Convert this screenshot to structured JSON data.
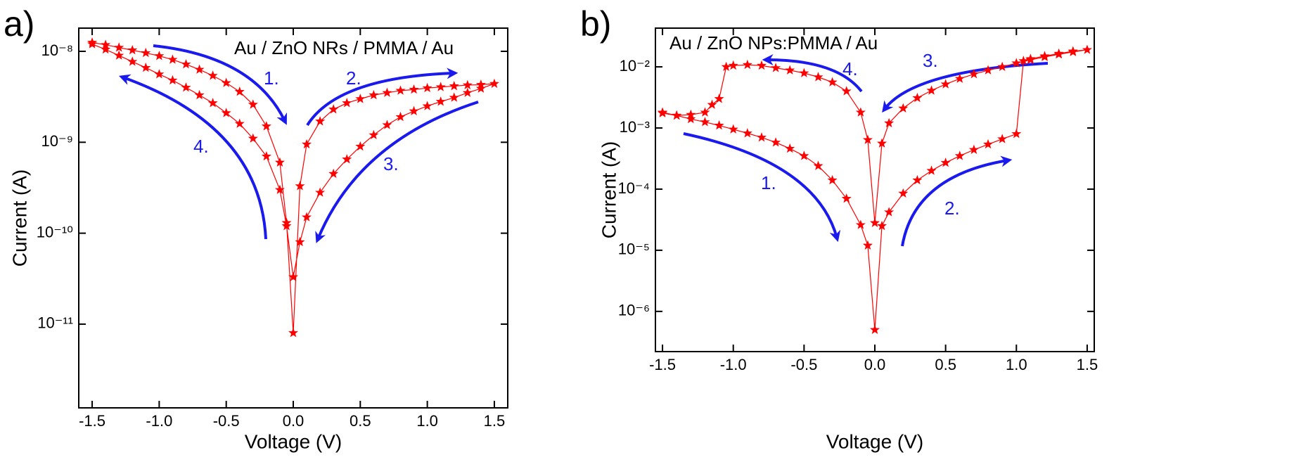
{
  "chart_data": [
    {
      "type": "line",
      "panel": "a)",
      "label": "Au / ZnO NRs / PMMA / Au",
      "annotations": [
        "1.",
        "2.",
        "3.",
        "4."
      ],
      "xlabel": "Voltage (V)",
      "ylabel": "Current (A)",
      "yscale": "log",
      "xlim": [
        -1.6,
        1.6
      ],
      "ylim": [
        1.2e-12,
        1.8e-08
      ],
      "xticks": [
        -1.5,
        {
          "value": -1,
          "label": "-1.0"
        },
        -0.5,
        {
          "value": 0,
          "label": "0.0"
        },
        0.5,
        {
          "value": 1,
          "label": "1.0"
        },
        1.5
      ],
      "yticks": [
        {
          "value": 1e-11,
          "label": "10⁻¹¹"
        },
        {
          "value": 1e-10,
          "label": "10⁻¹⁰"
        },
        {
          "value": 1e-09,
          "label": "10⁻⁹"
        },
        {
          "value": 1e-08,
          "label": "10⁻⁸"
        }
      ],
      "series": [
        {
          "color": "#ff0000",
          "x": [
            -1.5,
            -1.4,
            -1.3,
            -1.2,
            -1.1,
            -1.0,
            -0.9,
            -0.8,
            -0.7,
            -0.6,
            -0.5,
            -0.4,
            -0.3,
            -0.2,
            -0.1,
            -0.05,
            0,
            0.05,
            0.1,
            0.2,
            0.3,
            0.4,
            0.5,
            0.6,
            0.7,
            0.8,
            0.9,
            1.0,
            1.1,
            1.2,
            1.3,
            1.4,
            1.5,
            1.4,
            1.3,
            1.2,
            1.1,
            1.0,
            0.9,
            0.8,
            0.7,
            0.6,
            0.5,
            0.4,
            0.3,
            0.2,
            0.1,
            0.05,
            0,
            -0.05,
            -0.1,
            -0.2,
            -0.3,
            -0.4,
            -0.5,
            -0.6,
            -0.7,
            -0.8,
            -0.9,
            -1.0,
            -1.1,
            -1.2,
            -1.3,
            -1.4,
            -1.5
          ],
          "values": [
            1.25e-08,
            1.18e-08,
            1.1e-08,
            1.03e-08,
            9.6e-09,
            8.9e-09,
            8.1e-09,
            7.2e-09,
            6.3e-09,
            5.4e-09,
            4.5e-09,
            3.6e-09,
            2.6e-09,
            1.5e-09,
            6e-10,
            1.3e-10,
            8e-12,
            3.3e-10,
            9.5e-10,
            1.7e-09,
            2.3e-09,
            2.7e-09,
            3e-09,
            3.3e-09,
            3.5e-09,
            3.7e-09,
            3.8e-09,
            3.95e-09,
            4.05e-09,
            4.15e-09,
            4.25e-09,
            4.3e-09,
            4.4e-09,
            3.9e-09,
            3.5e-09,
            3.1e-09,
            2.8e-09,
            2.5e-09,
            2.2e-09,
            1.9e-09,
            1.55e-09,
            1.2e-09,
            9e-10,
            6.5e-10,
            4.5e-10,
            2.8e-10,
            1.5e-10,
            8e-11,
            3.3e-11,
            1.2e-10,
            3e-10,
            7e-10,
            1.1e-09,
            1.6e-09,
            2.1e-09,
            2.7e-09,
            3.3e-09,
            4e-09,
            4.8e-09,
            5.6e-09,
            6.6e-09,
            7.7e-09,
            9e-09,
            1.05e-08,
            1.2e-08
          ]
        }
      ]
    },
    {
      "type": "line",
      "panel": "b)",
      "label": "Au / ZnO NPs:PMMA / Au",
      "annotations": [
        "1.",
        "2.",
        "3.",
        "4."
      ],
      "xlabel": "Voltage (V)",
      "ylabel": "Current (A)",
      "yscale": "log",
      "xlim": [
        -1.55,
        1.55
      ],
      "ylim": [
        2.2e-07,
        0.043
      ],
      "xticks": [
        -1.5,
        {
          "value": -1,
          "label": "-1.0"
        },
        -0.5,
        {
          "value": 0,
          "label": "0.0"
        },
        0.5,
        {
          "value": 1,
          "label": "1.0"
        },
        1.5
      ],
      "yticks": [
        {
          "value": 1e-06,
          "label": "10⁻⁶"
        },
        {
          "value": 1e-05,
          "label": "10⁻⁵"
        },
        {
          "value": 0.0001,
          "label": "10⁻⁴"
        },
        {
          "value": 0.001,
          "label": "10⁻³"
        },
        {
          "value": 0.01,
          "label": "10⁻²"
        }
      ],
      "series": [
        {
          "color": "#ff0000",
          "x": [
            -1.5,
            -1.4,
            -1.3,
            -1.2,
            -1.1,
            -1.0,
            -0.9,
            -0.8,
            -0.7,
            -0.6,
            -0.5,
            -0.4,
            -0.3,
            -0.2,
            -0.1,
            -0.05,
            0,
            0.05,
            0.1,
            0.2,
            0.3,
            0.4,
            0.5,
            0.6,
            0.7,
            0.8,
            0.9,
            1.0,
            1.05,
            1.1,
            1.2,
            1.3,
            1.4,
            1.5,
            1.4,
            1.3,
            1.2,
            1.1,
            1.0,
            0.9,
            0.8,
            0.7,
            0.6,
            0.5,
            0.4,
            0.3,
            0.2,
            0.1,
            0.05,
            0,
            -0.05,
            -0.1,
            -0.2,
            -0.3,
            -0.4,
            -0.5,
            -0.6,
            -0.7,
            -0.8,
            -0.9,
            -1.0,
            -1.05,
            -1.1,
            -1.15,
            -1.2,
            -1.3,
            -1.4,
            -1.5
          ],
          "values": [
            0.0018,
            0.0016,
            0.0014,
            0.00125,
            0.0011,
            0.00095,
            0.00082,
            0.0007,
            0.00058,
            0.00046,
            0.00035,
            0.00024,
            0.00014,
            7e-05,
            2.6e-05,
            1.2e-05,
            5e-07,
            2.5e-05,
            4.2e-05,
            8.5e-05,
            0.00014,
            0.0002,
            0.00027,
            0.00035,
            0.00044,
            0.00054,
            0.00066,
            0.0008,
            0.0125,
            0.0135,
            0.015,
            0.0165,
            0.018,
            0.019,
            0.0175,
            0.016,
            0.0145,
            0.013,
            0.0115,
            0.01,
            0.0088,
            0.0076,
            0.0064,
            0.0052,
            0.0041,
            0.0031,
            0.0021,
            0.0012,
            0.00056,
            2.8e-05,
            0.00064,
            0.0018,
            0.004,
            0.0056,
            0.0068,
            0.0079,
            0.0088,
            0.0096,
            0.0105,
            0.0108,
            0.0105,
            0.01,
            0.003,
            0.0024,
            0.0018,
            0.00165,
            0.0016,
            0.00175
          ]
        }
      ]
    }
  ]
}
